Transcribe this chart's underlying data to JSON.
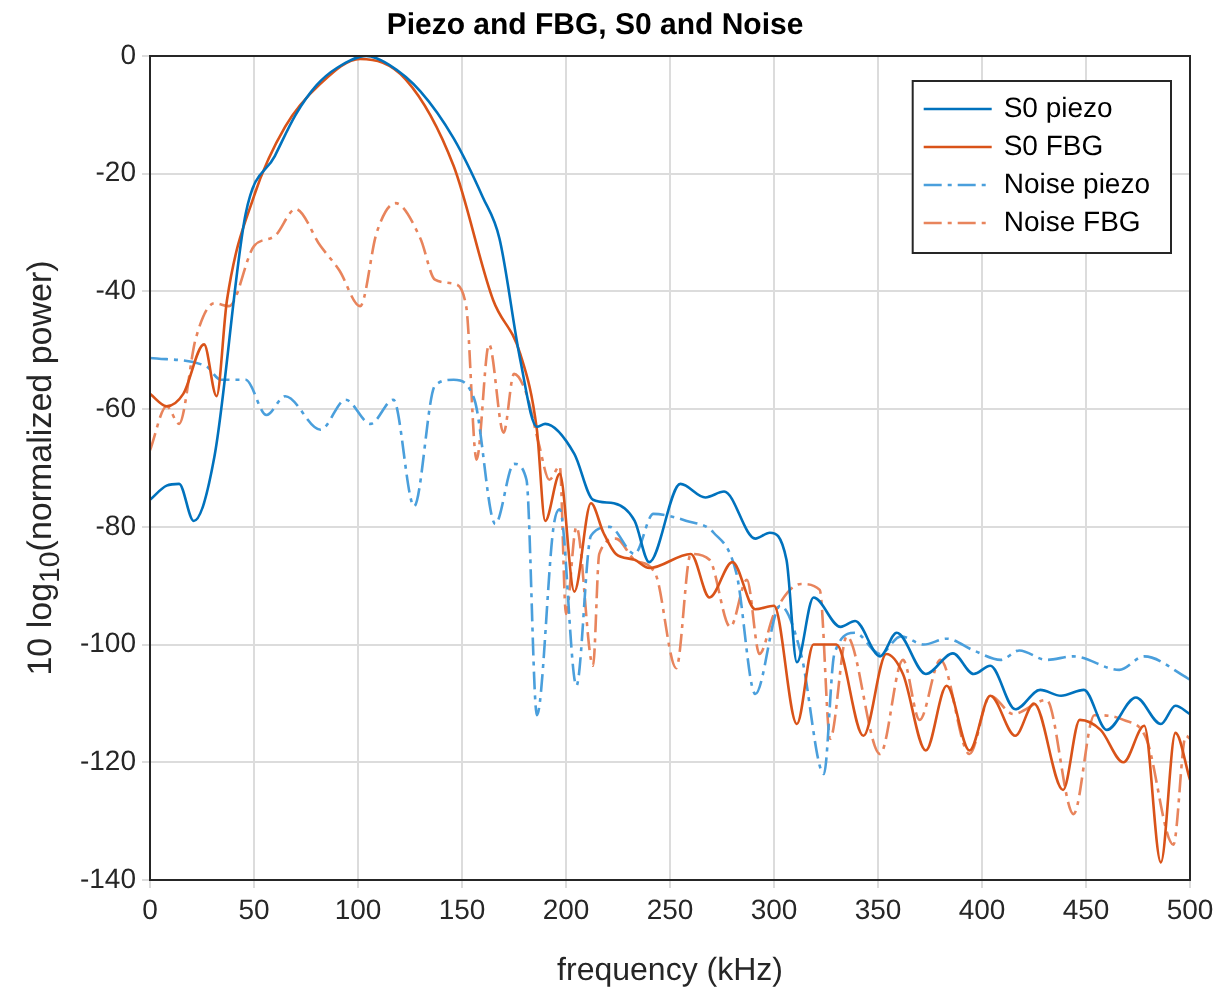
{
  "chart_data": {
    "type": "line",
    "title": "Piezo and FBG, S0 and Noise",
    "xlabel": "frequency (kHz)",
    "ylabel": "10 log$_{10}$(normalized power)",
    "xlim": [
      0,
      500
    ],
    "xticks": [
      0,
      50,
      100,
      150,
      200,
      250,
      300,
      350,
      400,
      450,
      500
    ],
    "ylim": [
      -140,
      0
    ],
    "yticks": [
      -140,
      -120,
      -100,
      -80,
      -60,
      -40,
      -20,
      0
    ],
    "grid": true,
    "legend": "top right",
    "marker": "none",
    "series": [
      {
        "name": "S0 piezo",
        "color": "#0072bd",
        "line_style": "solid",
        "x": [
          0,
          8,
          14,
          21,
          31,
          46,
          60,
          70,
          80,
          90,
          104,
          115,
          130,
          146,
          160,
          168,
          178,
          186,
          190,
          204,
          213,
          223,
          233,
          240,
          255,
          267,
          276,
          291,
          298,
          306,
          311,
          319,
          332,
          339,
          351,
          359,
          373,
          386,
          396,
          404,
          416,
          428,
          438,
          449,
          460,
          474,
          486,
          493,
          500
        ],
        "values": [
          -75.4,
          -73,
          -72.7,
          -79,
          -68,
          -26.8,
          -17,
          -10,
          -5,
          -2,
          0,
          -1.5,
          -6,
          -14,
          -24,
          -31,
          -51.6,
          -63,
          -62.5,
          -67.6,
          -75.4,
          -76,
          -79,
          -86,
          -72.7,
          -75,
          -74,
          -82,
          -81,
          -85.6,
          -103,
          -92,
          -97,
          -96,
          -102,
          -98,
          -105,
          -101.5,
          -105,
          -103.6,
          -111,
          -107.7,
          -108.7,
          -107.7,
          -114.5,
          -109,
          -113.5,
          -110.4,
          -111.8
        ]
      },
      {
        "name": "S0 FBG",
        "color": "#d95319",
        "line_style": "solid",
        "x": [
          0,
          8,
          16,
          26,
          32,
          37,
          50,
          65,
          82,
          101,
          123,
          146,
          165,
          178,
          186,
          190,
          197,
          204,
          212,
          218,
          224,
          233,
          240,
          260,
          269,
          280,
          291,
          300,
          311,
          319,
          330,
          343,
          354,
          362,
          373,
          383,
          394,
          404,
          416,
          425,
          439,
          447,
          457,
          468,
          478,
          486,
          493,
          500
        ],
        "values": [
          -57.4,
          -59.5,
          -57.4,
          -49,
          -57.8,
          -41.5,
          -23.8,
          -12,
          -4.7,
          -0.5,
          -4,
          -18.7,
          -41.5,
          -50.6,
          -63.5,
          -79,
          -71,
          -91,
          -76,
          -81,
          -84.6,
          -85.6,
          -87,
          -84.6,
          -92,
          -86,
          -94,
          -93.4,
          -113.5,
          -100,
          -100,
          -115.5,
          -101.6,
          -105,
          -118,
          -107,
          -118,
          -108.7,
          -115.5,
          -110,
          -124.7,
          -112.8,
          -114.5,
          -120,
          -113.8,
          -137,
          -115,
          -123
        ]
      },
      {
        "name": "Noise piezo",
        "color": "#4a9fdc",
        "line_style": "dashed",
        "x": [
          0,
          27,
          34,
          46,
          56,
          65,
          82,
          94,
          106,
          117,
          127,
          137,
          146,
          156,
          166,
          175,
          181,
          186,
          194,
          197,
          205,
          212,
          221,
          233,
          242,
          258,
          271,
          282,
          291,
          303,
          313,
          324,
          329,
          339,
          351,
          361,
          372,
          383,
          396,
          409,
          418,
          431,
          444,
          466,
          478,
          497,
          500
        ],
        "values": [
          -51.3,
          -52.7,
          -55,
          -55,
          -61,
          -57.8,
          -63.5,
          -58.4,
          -62.5,
          -58.4,
          -76.5,
          -56,
          -55,
          -58.4,
          -79.5,
          -69.3,
          -72,
          -112,
          -80,
          -77,
          -107,
          -81.5,
          -80,
          -84.6,
          -77.8,
          -79,
          -81,
          -88,
          -108.4,
          -93.4,
          -101.6,
          -122,
          -101.6,
          -98,
          -101.6,
          -98.6,
          -100,
          -99,
          -101,
          -102.6,
          -101,
          -102.6,
          -102,
          -104.3,
          -102,
          -105.3,
          -106
        ]
      },
      {
        "name": "Noise FBG",
        "color": "#e8845c",
        "line_style": "dashed",
        "x": [
          0,
          8,
          14,
          22,
          31,
          38,
          50,
          60,
          70,
          82,
          91,
          101,
          109,
          118,
          130,
          137,
          146,
          152,
          157,
          163,
          170,
          175,
          181,
          187,
          192,
          197,
          200,
          205,
          213,
          216,
          224,
          233,
          243,
          253,
          260,
          269,
          279,
          287,
          293,
          300,
          313,
          322,
          327,
          335,
          351,
          362,
          370,
          380,
          394,
          404,
          415,
          431,
          444,
          454,
          468,
          479,
          492,
          498,
          500
        ],
        "values": [
          -67,
          -59.5,
          -62.5,
          -48,
          -42,
          -42.5,
          -32.3,
          -30.6,
          -26,
          -32.3,
          -36.4,
          -42.5,
          -30,
          -25,
          -31,
          -38,
          -38.7,
          -42.5,
          -68.6,
          -49,
          -64,
          -54,
          -57.4,
          -66,
          -72,
          -69.7,
          -94.8,
          -80,
          -103.6,
          -84.6,
          -82,
          -85.6,
          -88,
          -104,
          -84.6,
          -85.6,
          -97,
          -89,
          -101.6,
          -94.8,
          -89.7,
          -90.7,
          -116,
          -98.6,
          -118.6,
          -102.6,
          -112.8,
          -102.6,
          -118.6,
          -108.7,
          -111.8,
          -109.4,
          -128.8,
          -112,
          -112.8,
          -116,
          -134,
          -115.5,
          -116
        ]
      }
    ]
  }
}
